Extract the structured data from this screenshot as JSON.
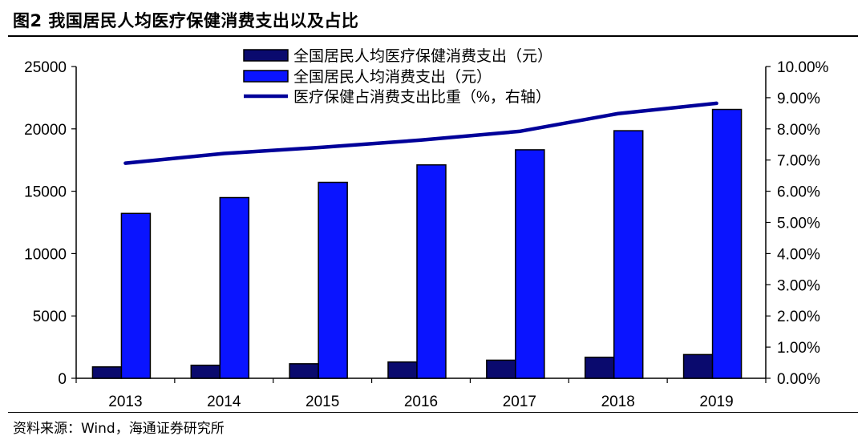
{
  "header": {
    "title": "图2   我国居民人均医疗保健消费支出以及占比"
  },
  "footer": {
    "source": "资料来源：Wind，海通证券研究所"
  },
  "colors": {
    "health_bar": "#0a0a6e",
    "consumption_bar": "#0a14ff",
    "ratio_line": "#000099",
    "axis": "#000000"
  },
  "chart_data": {
    "type": "bar",
    "title": "我国居民人均医疗保健消费支出以及占比",
    "categories": [
      "2013",
      "2014",
      "2015",
      "2016",
      "2017",
      "2018",
      "2019"
    ],
    "series": [
      {
        "name": "全国居民人均医疗保健消费支出（元）",
        "kind": "bar",
        "axis": "left",
        "values": [
          912,
          1045,
          1165,
          1307,
          1451,
          1685,
          1902
        ]
      },
      {
        "name": "全国居民人均消费支出（元）",
        "kind": "bar",
        "axis": "left",
        "values": [
          13220,
          14491,
          15712,
          17111,
          18322,
          19853,
          21559
        ]
      },
      {
        "name": "医疗保健占消费支出比重（%，右轴）",
        "kind": "line",
        "axis": "right",
        "values": [
          6.9,
          7.21,
          7.41,
          7.64,
          7.92,
          8.49,
          8.82
        ]
      }
    ],
    "left_axis": {
      "min": 0,
      "max": 25000,
      "ticks": [
        "0",
        "5000",
        "10000",
        "15000",
        "20000",
        "25000"
      ]
    },
    "right_axis": {
      "min": 0,
      "max": 10,
      "ticks": [
        "0.00%",
        "1.00%",
        "2.00%",
        "3.00%",
        "4.00%",
        "5.00%",
        "6.00%",
        "7.00%",
        "8.00%",
        "9.00%",
        "10.00%"
      ]
    },
    "legend_position": "top-center",
    "grid": false
  }
}
